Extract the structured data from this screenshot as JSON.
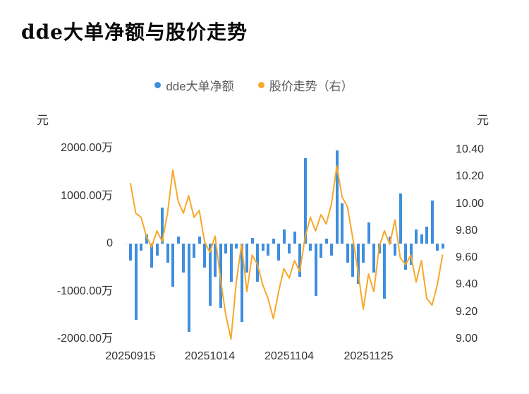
{
  "title": "dde大单净额与股价走势",
  "unit_left": "元",
  "unit_right": "元",
  "legend": [
    {
      "label": "dde大单净额",
      "color": "#3e8ede"
    },
    {
      "label": "股价走势（右）",
      "color": "#f7a828"
    }
  ],
  "colors": {
    "bar": "#3e8ede",
    "line": "#f7a828"
  },
  "chart_data": {
    "type": "bar+line",
    "title": "dde大单净额与股价走势",
    "x": [
      "20250915",
      "20250916",
      "20250917",
      "20250918",
      "20250919",
      "20250922",
      "20250923",
      "20250924",
      "20250925",
      "20250926",
      "20250929",
      "20250930",
      "20251009",
      "20251010",
      "20251013",
      "20251014",
      "20251015",
      "20251016",
      "20251017",
      "20251020",
      "20251021",
      "20251022",
      "20251023",
      "20251024",
      "20251027",
      "20251028",
      "20251029",
      "20251030",
      "20251031",
      "20251103",
      "20251104",
      "20251105",
      "20251106",
      "20251107",
      "20251110",
      "20251111",
      "20251112",
      "20251113",
      "20251114",
      "20251117",
      "20251118",
      "20251119",
      "20251120",
      "20251121",
      "20251124",
      "20251125",
      "20251126",
      "20251127",
      "20251128",
      "20251201",
      "20251202",
      "20251203",
      "20251204",
      "20251205",
      "20251208",
      "20251209",
      "20251210",
      "20251211",
      "20251212",
      "20251215"
    ],
    "x_tick_labels": [
      "20250915",
      "20251014",
      "20251104",
      "20251125"
    ],
    "x_tick_indices": [
      0,
      15,
      30,
      45
    ],
    "series": [
      {
        "name": "dde大单净额",
        "type": "bar",
        "axis": "left",
        "unit": "万元",
        "color": "#3e8ede",
        "values": [
          -350,
          -1600,
          -150,
          200,
          -500,
          -250,
          750,
          -400,
          -900,
          150,
          -600,
          -1850,
          -300,
          150,
          -500,
          -1300,
          -700,
          -1350,
          -200,
          -800,
          -100,
          -1650,
          -600,
          120,
          -800,
          -150,
          -250,
          100,
          -350,
          300,
          -200,
          250,
          -700,
          1800,
          -150,
          -1100,
          -300,
          100,
          -250,
          1950,
          850,
          -400,
          -700,
          -850,
          -400,
          450,
          -600,
          -200,
          -1150,
          150,
          -250,
          1050,
          -550,
          -450,
          300,
          200,
          350,
          900,
          -150,
          -100
        ]
      },
      {
        "name": "股价走势（右）",
        "type": "line",
        "axis": "right",
        "unit": "元",
        "color": "#f7a828",
        "values": [
          10.15,
          9.93,
          9.9,
          9.76,
          9.68,
          9.8,
          9.72,
          9.93,
          10.25,
          10.02,
          9.93,
          10.06,
          9.9,
          9.95,
          9.72,
          9.64,
          9.76,
          9.45,
          9.18,
          9.0,
          9.42,
          9.7,
          9.35,
          9.62,
          9.55,
          9.4,
          9.3,
          9.15,
          9.35,
          9.52,
          9.45,
          9.58,
          9.5,
          9.75,
          9.9,
          9.8,
          9.92,
          9.85,
          10.0,
          10.28,
          10.05,
          9.98,
          9.75,
          9.5,
          9.22,
          9.48,
          9.35,
          9.68,
          9.8,
          9.7,
          9.88,
          9.6,
          9.55,
          9.62,
          9.42,
          9.58,
          9.3,
          9.25,
          9.4,
          9.62
        ]
      }
    ],
    "left_axis": {
      "unit": "元",
      "min": -2000,
      "max": 2000,
      "values_in": "万",
      "tick_labels": [
        "2000.00万",
        "1000.00万",
        "0",
        "-1000.00万",
        "-2000.00万"
      ]
    },
    "right_axis": {
      "unit": "元",
      "min": 9.0,
      "max": 10.4,
      "tick_labels": [
        "10.40",
        "10.20",
        "10.00",
        "9.80",
        "9.60",
        "9.40",
        "9.20",
        "9.00"
      ]
    },
    "grid": false,
    "legend_position": "top-center"
  }
}
